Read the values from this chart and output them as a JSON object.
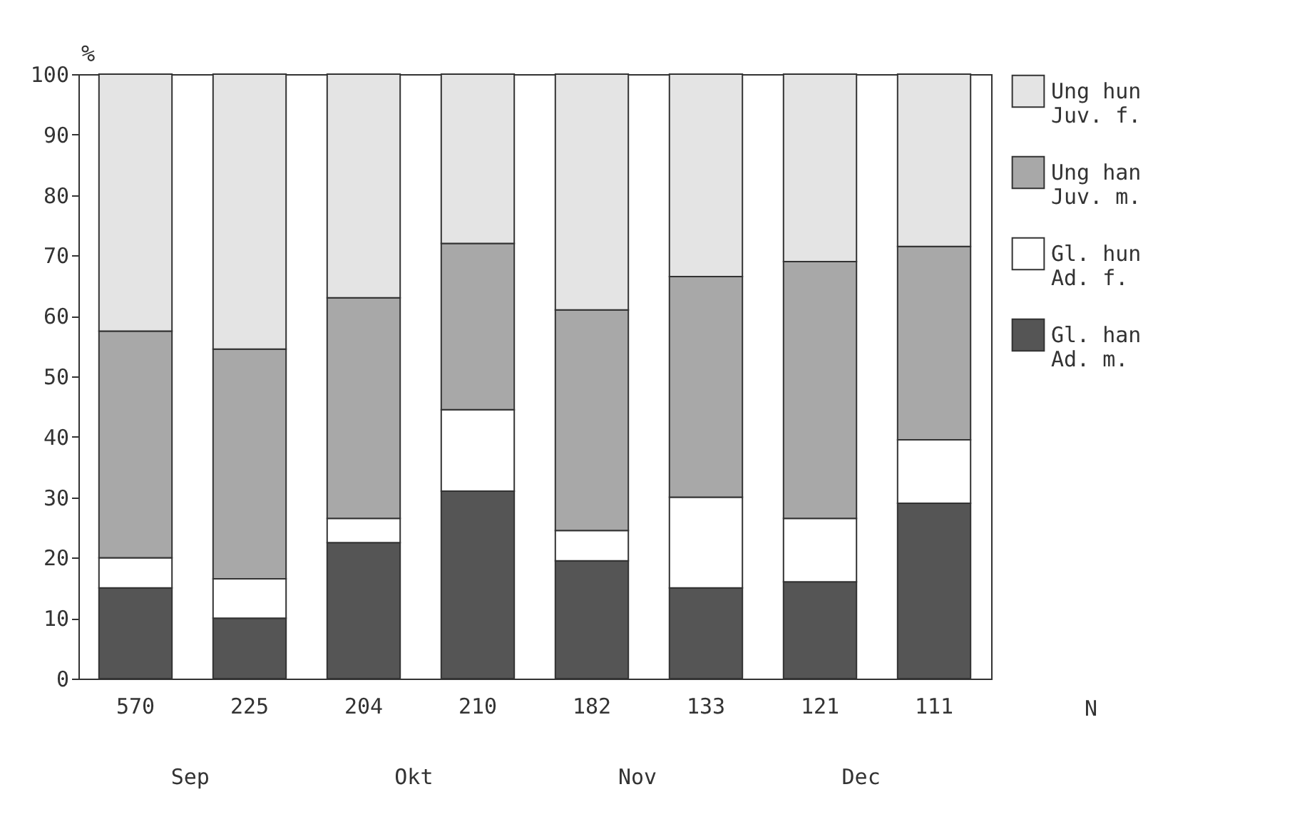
{
  "chart_data": {
    "type": "bar",
    "stacked": true,
    "ylabel": "%",
    "xlabel": "N",
    "categories": [
      "570",
      "225",
      "204",
      "210",
      "182",
      "133",
      "121",
      "111"
    ],
    "series": [
      {
        "name": "Gl. han\nAd. m.",
        "color": "#555555",
        "values": [
          15,
          10,
          22.5,
          31,
          19.5,
          15,
          16,
          29
        ]
      },
      {
        "name": "Gl. hun\nAd. f.",
        "color": "#ffffff",
        "values": [
          5,
          6.5,
          4,
          13.5,
          5,
          15,
          10.5,
          10.5
        ]
      },
      {
        "name": "Ung han\nJuv. m.",
        "color": "#a8a8a8",
        "values": [
          37.5,
          38,
          36.5,
          27.5,
          36.5,
          36.5,
          42.5,
          32
        ]
      },
      {
        "name": "Ung hun\nJuv. f.",
        "color": "#e4e4e4",
        "values": [
          42.5,
          45.5,
          37,
          28,
          39,
          33.5,
          31,
          28.5
        ]
      }
    ],
    "ylim": [
      0,
      100
    ],
    "yticks": [
      0,
      10,
      20,
      30,
      40,
      50,
      60,
      70,
      80,
      90,
      100
    ],
    "annotations": [
      "Sep",
      "Okt",
      "Nov",
      "Dec"
    ],
    "legend": "right",
    "grid": false
  }
}
